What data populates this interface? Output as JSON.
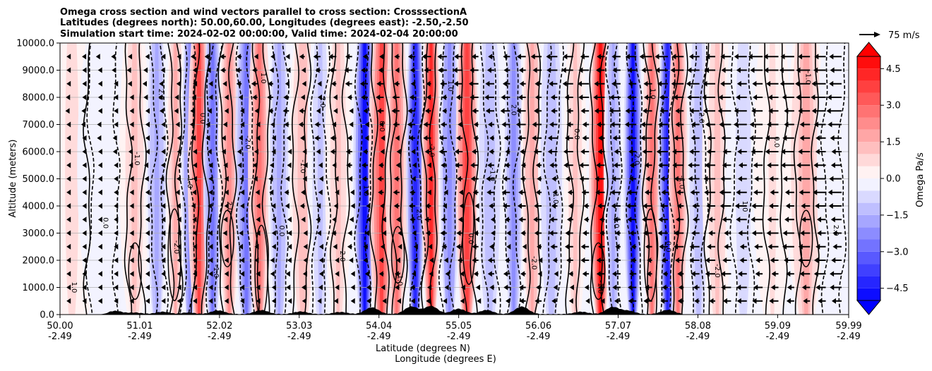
{
  "chart_data": {
    "type": "contourf",
    "title_lines": [
      "Omega cross section and wind vectors parallel to cross section: CrosssectionA",
      "Latitudes (degrees north): 50.00,60.00, Longitudes (degrees east): -2.50,-2.50",
      "Simulation start time: 2024-02-02 00:00:00, Valid time: 2024-02-04 20:00:00"
    ],
    "ylabel": "Altitude (meters)",
    "xlabel": "Latitude (degrees N)",
    "xlabel2": "Longitude (degrees E)",
    "ylim": [
      0,
      10000
    ],
    "xlim": [
      50.0,
      59.99
    ],
    "y_ticks": [
      0,
      1000,
      2000,
      3000,
      4000,
      5000,
      6000,
      7000,
      8000,
      9000,
      10000
    ],
    "y_tick_labels": [
      "0.0",
      "1000.0",
      "2000.0",
      "3000.0",
      "4000.0",
      "5000.0",
      "6000.0",
      "7000.0",
      "8000.0",
      "9000.0",
      "10000.0"
    ],
    "x_ticks": [
      50.0,
      51.01,
      52.02,
      53.03,
      54.04,
      55.05,
      56.06,
      57.07,
      58.08,
      59.09,
      59.99
    ],
    "x_tick_labels": [
      "50.00",
      "51.01",
      "52.02",
      "53.03",
      "54.04",
      "55.05",
      "56.06",
      "57.07",
      "58.08",
      "59.09",
      "59.99"
    ],
    "x_tick_labels2": [
      "-2.49",
      "-2.49",
      "-2.49",
      "-2.49",
      "-2.49",
      "-2.49",
      "-2.49",
      "-2.49",
      "-2.49",
      "-2.49",
      "-2.49"
    ],
    "colorbar": {
      "label": "Omega Pa/s",
      "range": [
        -5.0,
        5.0
      ],
      "ticks": [
        4.5,
        3.0,
        1.5,
        0.0,
        -1.5,
        -3.0,
        -4.5
      ],
      "tick_labels": [
        "4.5",
        "3.0",
        "1.5",
        "0.0",
        "−1.5",
        "−3.0",
        "−4.5"
      ],
      "extend": "both",
      "cmap": "bwr",
      "low_color": "#0000ff",
      "high_color": "#ff0000"
    },
    "quiver_key": {
      "label": "75 m/s",
      "value": 75
    },
    "contour_label_values": [
      "1.0",
      "0.0",
      "-1.0",
      "2.0",
      "-2.0"
    ],
    "omega_bands": [
      {
        "lat": 50.15,
        "value": 0.6,
        "width": 0.18
      },
      {
        "lat": 50.55,
        "value": -0.5,
        "width": 0.15
      },
      {
        "lat": 50.95,
        "value": 1.2,
        "width": 0.08
      },
      {
        "lat": 51.25,
        "value": -1.8,
        "width": 0.06
      },
      {
        "lat": 51.45,
        "value": 1.5,
        "width": 0.05
      },
      {
        "lat": 51.62,
        "value": -2.5,
        "width": 0.05
      },
      {
        "lat": 51.78,
        "value": 3.5,
        "width": 0.06
      },
      {
        "lat": 51.95,
        "value": -3.0,
        "width": 0.05
      },
      {
        "lat": 52.12,
        "value": 2.0,
        "width": 0.06
      },
      {
        "lat": 52.35,
        "value": -2.8,
        "width": 0.06
      },
      {
        "lat": 52.55,
        "value": 2.5,
        "width": 0.06
      },
      {
        "lat": 52.78,
        "value": -1.8,
        "width": 0.06
      },
      {
        "lat": 53.05,
        "value": 1.3,
        "width": 0.07
      },
      {
        "lat": 53.3,
        "value": -1.2,
        "width": 0.07
      },
      {
        "lat": 53.55,
        "value": 1.0,
        "width": 0.07
      },
      {
        "lat": 53.85,
        "value": -4.8,
        "width": 0.06
      },
      {
        "lat": 54.05,
        "value": 3.5,
        "width": 0.07
      },
      {
        "lat": 54.28,
        "value": 2.5,
        "width": 0.06
      },
      {
        "lat": 54.52,
        "value": -4.5,
        "width": 0.05
      },
      {
        "lat": 54.68,
        "value": 4.0,
        "width": 0.05
      },
      {
        "lat": 54.92,
        "value": -2.5,
        "width": 0.06
      },
      {
        "lat": 55.18,
        "value": 3.8,
        "width": 0.06
      },
      {
        "lat": 55.45,
        "value": -1.5,
        "width": 0.07
      },
      {
        "lat": 55.72,
        "value": -2.2,
        "width": 0.06
      },
      {
        "lat": 55.98,
        "value": 1.8,
        "width": 0.06
      },
      {
        "lat": 56.25,
        "value": -1.5,
        "width": 0.07
      },
      {
        "lat": 56.52,
        "value": 1.2,
        "width": 0.06
      },
      {
        "lat": 56.82,
        "value": 4.5,
        "width": 0.06
      },
      {
        "lat": 57.02,
        "value": -1.8,
        "width": 0.05
      },
      {
        "lat": 57.28,
        "value": -4.8,
        "width": 0.05
      },
      {
        "lat": 57.48,
        "value": 2.5,
        "width": 0.05
      },
      {
        "lat": 57.68,
        "value": -4.5,
        "width": 0.05
      },
      {
        "lat": 57.85,
        "value": 2.8,
        "width": 0.05
      },
      {
        "lat": 58.1,
        "value": -1.5,
        "width": 0.06
      },
      {
        "lat": 58.3,
        "value": 1.0,
        "width": 0.08
      },
      {
        "lat": 58.65,
        "value": -0.8,
        "width": 0.1
      },
      {
        "lat": 59.05,
        "value": 0.5,
        "width": 0.1
      },
      {
        "lat": 59.45,
        "value": 1.6,
        "width": 0.1
      },
      {
        "lat": 59.8,
        "value": -0.5,
        "width": 0.1
      }
    ],
    "terrain_bumps": [
      {
        "lat": 50.7,
        "height": 120
      },
      {
        "lat": 50.95,
        "height": 60
      },
      {
        "lat": 51.3,
        "height": 90
      },
      {
        "lat": 51.62,
        "height": 60
      },
      {
        "lat": 52.0,
        "height": 140
      },
      {
        "lat": 52.55,
        "height": 150
      },
      {
        "lat": 53.05,
        "height": 100
      },
      {
        "lat": 53.55,
        "height": 80
      },
      {
        "lat": 53.95,
        "height": 250
      },
      {
        "lat": 54.45,
        "height": 280
      },
      {
        "lat": 54.7,
        "height": 300
      },
      {
        "lat": 55.05,
        "height": 200
      },
      {
        "lat": 55.4,
        "height": 150
      },
      {
        "lat": 55.85,
        "height": 280
      },
      {
        "lat": 56.6,
        "height": 90
      },
      {
        "lat": 57.0,
        "height": 260
      },
      {
        "lat": 57.2,
        "height": 120
      },
      {
        "lat": 57.7,
        "height": 160
      }
    ],
    "wind_rows_altitudes": [
      500,
      1000,
      1500,
      2000,
      2500,
      3000,
      3500,
      4000,
      4500,
      5000,
      5500,
      6000,
      6500,
      7000,
      7500,
      8000,
      8500,
      9000,
      9500
    ]
  }
}
